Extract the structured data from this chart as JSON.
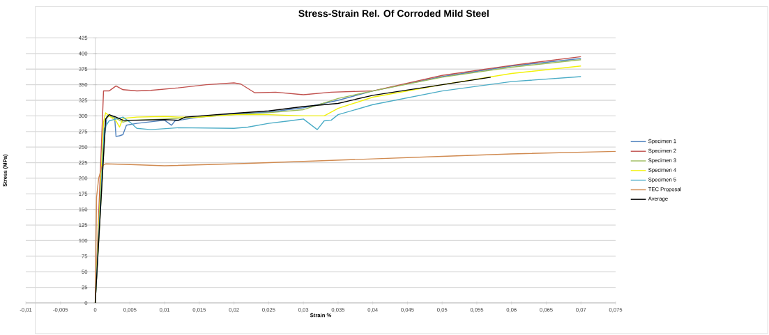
{
  "chart_data": {
    "type": "line",
    "title": "Stress-Strain Rel. Of Corroded Mild Steel",
    "xlabel": "Strain %",
    "ylabel": "Stress (MPa)",
    "xlim": [
      -0.01,
      0.075
    ],
    "ylim": [
      0,
      425
    ],
    "xticks": [
      {
        "value": -0.01,
        "label": "-0,01"
      },
      {
        "value": -0.005,
        "label": "-0,005"
      },
      0,
      {
        "value": 0.005,
        "label": "0,005"
      },
      {
        "value": 0.01,
        "label": "0,01"
      },
      {
        "value": 0.015,
        "label": "0,015"
      },
      {
        "value": 0.02,
        "label": "0,02"
      },
      {
        "value": 0.025,
        "label": "0,025"
      },
      {
        "value": 0.03,
        "label": "0,03"
      },
      {
        "value": 0.035,
        "label": "0,035"
      },
      {
        "value": 0.04,
        "label": "0,04"
      },
      {
        "value": 0.045,
        "label": "0,045"
      },
      {
        "value": 0.05,
        "label": "0,05"
      },
      {
        "value": 0.055,
        "label": "0,055"
      },
      {
        "value": 0.06,
        "label": "0,06"
      },
      {
        "value": 0.065,
        "label": "0,065"
      },
      {
        "value": 0.07,
        "label": "0,07"
      },
      {
        "value": 0.075,
        "label": "0,075"
      }
    ],
    "yticks": [
      0,
      25,
      50,
      75,
      100,
      125,
      150,
      175,
      200,
      225,
      250,
      275,
      300,
      325,
      350,
      375,
      400,
      425
    ],
    "grid": "y",
    "legend": "right",
    "marker": "none",
    "line_style": "solid",
    "series": [
      {
        "name": "Specimen 1",
        "color": "#4f81bd",
        "x": [
          0,
          0.0012,
          0.0017,
          0.002,
          0.0028,
          0.003,
          0.0035,
          0.004,
          0.0045,
          0.006,
          0.01,
          0.011,
          0.0115,
          0.015,
          0.02,
          0.025,
          0.03,
          0.035,
          0.04,
          0.05,
          0.06,
          0.07
        ],
        "values": [
          0,
          250,
          300,
          300,
          298,
          267,
          268,
          270,
          285,
          288,
          293,
          285,
          292,
          298,
          303,
          306,
          313,
          325,
          340,
          363,
          380,
          392
        ]
      },
      {
        "name": "Specimen 2",
        "color": "#c0504d",
        "x": [
          0,
          0.0012,
          0.002,
          0.003,
          0.004,
          0.006,
          0.008,
          0.012,
          0.016,
          0.02,
          0.021,
          0.023,
          0.026,
          0.03,
          0.034,
          0.04,
          0.05,
          0.06,
          0.07
        ],
        "values": [
          0,
          340,
          340,
          348,
          342,
          340,
          341,
          345,
          350,
          353,
          351,
          337,
          338,
          334,
          338,
          340,
          365,
          381,
          395
        ]
      },
      {
        "name": "Specimen 3",
        "color": "#9bbb59",
        "x": [
          0,
          0.0015,
          0.002,
          0.003,
          0.004,
          0.005,
          0.01,
          0.015,
          0.02,
          0.025,
          0.03,
          0.035,
          0.04,
          0.05,
          0.06,
          0.07
        ],
        "values": [
          0,
          295,
          300,
          296,
          290,
          293,
          295,
          298,
          302,
          305,
          310,
          328,
          340,
          362,
          378,
          390
        ]
      },
      {
        "name": "Specimen 4",
        "color": "#f2f20a",
        "x": [
          0,
          0.0012,
          0.0015,
          0.002,
          0.003,
          0.0035,
          0.004,
          0.006,
          0.01,
          0.012,
          0.015,
          0.02,
          0.025,
          0.03,
          0.033,
          0.035,
          0.04,
          0.05,
          0.06,
          0.07
        ],
        "values": [
          0,
          290,
          305,
          300,
          292,
          282,
          296,
          298,
          299,
          298,
          298,
          302,
          302,
          300,
          300,
          312,
          330,
          350,
          368,
          380
        ]
      },
      {
        "name": "Specimen 5",
        "color": "#4bacc6",
        "x": [
          0,
          0.0013,
          0.002,
          0.003,
          0.004,
          0.005,
          0.006,
          0.008,
          0.012,
          0.02,
          0.022,
          0.025,
          0.028,
          0.03,
          0.032,
          0.033,
          0.034,
          0.035,
          0.04,
          0.05,
          0.06,
          0.07
        ],
        "values": [
          0,
          280,
          292,
          295,
          298,
          290,
          280,
          278,
          281,
          280,
          282,
          288,
          292,
          295,
          278,
          292,
          293,
          302,
          318,
          340,
          355,
          363
        ]
      },
      {
        "name": "TEC Proposal",
        "color": "#d08a50",
        "x": [
          0,
          0.0002,
          0.0005,
          0.001,
          0.0015,
          0.005,
          0.01,
          0.02,
          0.03,
          0.04,
          0.05,
          0.06,
          0.075
        ],
        "values": [
          0,
          170,
          200,
          220,
          223,
          222,
          220,
          223,
          227,
          231,
          235,
          239,
          243
        ]
      },
      {
        "name": "Average",
        "color": "#000000",
        "x": [
          0,
          0.0015,
          0.002,
          0.003,
          0.004,
          0.006,
          0.01,
          0.012,
          0.013,
          0.02,
          0.025,
          0.03,
          0.035,
          0.04,
          0.05,
          0.057
        ],
        "values": [
          0,
          295,
          302,
          298,
          293,
          293,
          294,
          293,
          298,
          304,
          308,
          315,
          320,
          333,
          350,
          362
        ]
      }
    ]
  }
}
